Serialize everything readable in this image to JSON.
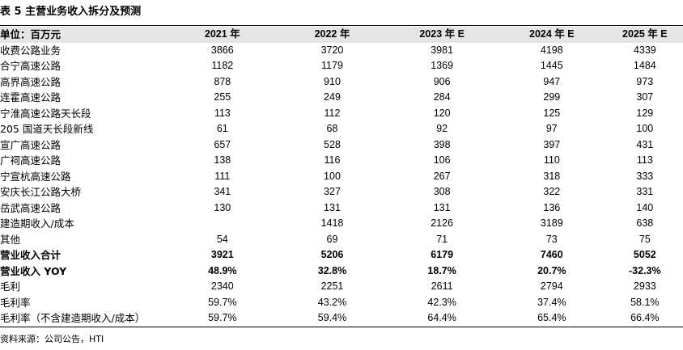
{
  "title": "表 5 主营业务收入拆分及预测",
  "table": {
    "header": {
      "label": "单位：百万元",
      "years": [
        "2021 年",
        "2022 年",
        "2023 年 E",
        "2024 年 E",
        "2025 年 E"
      ]
    },
    "rows": [
      {
        "label": "收费公路业务",
        "values": [
          "3866",
          "3720",
          "3981",
          "4198",
          "4339"
        ]
      },
      {
        "label": "合宁高速公路",
        "values": [
          "1182",
          "1179",
          "1369",
          "1445",
          "1484"
        ]
      },
      {
        "label": "高界高速公路",
        "values": [
          "878",
          "910",
          "906",
          "947",
          "973"
        ]
      },
      {
        "label": "连霍高速公路",
        "values": [
          "255",
          "249",
          "284",
          "299",
          "307"
        ]
      },
      {
        "label": "宁淮高速公路天长段",
        "values": [
          "113",
          "112",
          "120",
          "125",
          "129"
        ]
      },
      {
        "label": "205 国道天长段新线",
        "values": [
          "61",
          "68",
          "92",
          "97",
          "100"
        ]
      },
      {
        "label": "宣广高速公路",
        "values": [
          "657",
          "528",
          "398",
          "397",
          "431"
        ]
      },
      {
        "label": "广祠高速公路",
        "values": [
          "138",
          "116",
          "106",
          "110",
          "113"
        ]
      },
      {
        "label": "宁宣杭高速公路",
        "values": [
          "111",
          "100",
          "267",
          "318",
          "333"
        ]
      },
      {
        "label": "安庆长江公路大桥",
        "values": [
          "341",
          "327",
          "308",
          "322",
          "331"
        ]
      },
      {
        "label": "岳武高速公路",
        "values": [
          "130",
          "131",
          "131",
          "136",
          "140"
        ]
      },
      {
        "label": "建造期收入/成本",
        "values": [
          "",
          "1418",
          "2126",
          "3189",
          "638"
        ]
      },
      {
        "label": "其他",
        "values": [
          "54",
          "69",
          "71",
          "73",
          "75"
        ]
      },
      {
        "label": "营业收入合计",
        "values": [
          "3921",
          "5206",
          "6179",
          "7460",
          "5052"
        ]
      },
      {
        "label": "营业收入 YOY",
        "values": [
          "48.9%",
          "32.8%",
          "18.7%",
          "20.7%",
          "-32.3%"
        ]
      },
      {
        "label": "毛利",
        "values": [
          "2340",
          "2251",
          "2611",
          "2794",
          "2933"
        ]
      },
      {
        "label": "毛利率",
        "values": [
          "59.7%",
          "43.2%",
          "42.3%",
          "37.4%",
          "58.1%"
        ]
      },
      {
        "label": "毛利率（不含建造期收入/成本）",
        "values": [
          "59.7%",
          "59.4%",
          "64.4%",
          "65.4%",
          "66.4%"
        ]
      }
    ]
  },
  "source": "资料来源：公司公告，HTI"
}
